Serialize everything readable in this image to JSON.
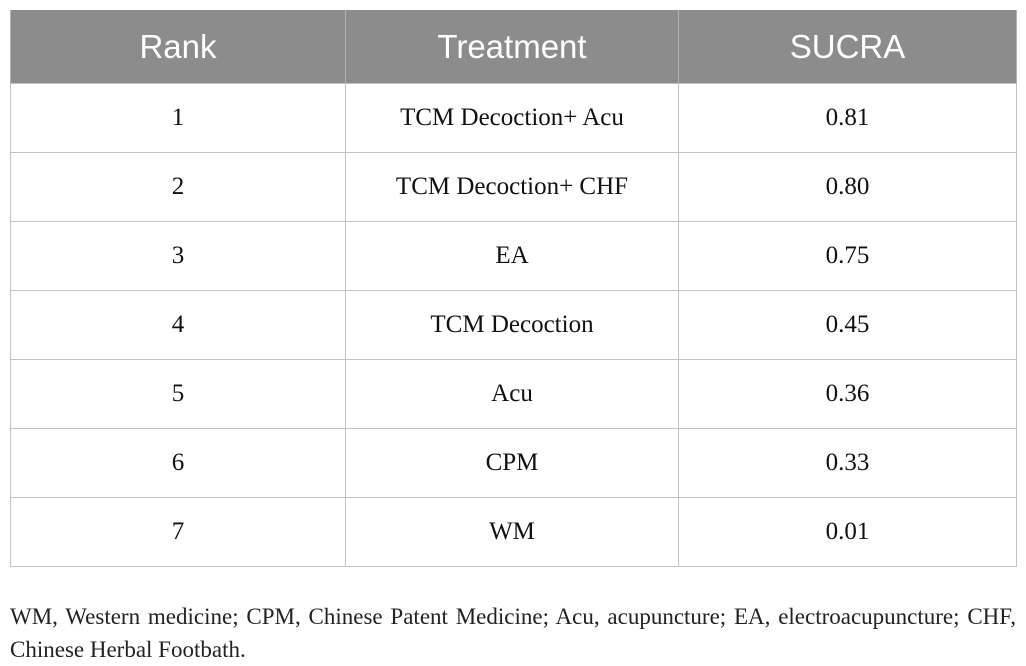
{
  "table": {
    "headers": [
      "Rank",
      "Treatment",
      "SUCRA"
    ],
    "rows": [
      {
        "rank": "1",
        "treatment": "TCM Decoction+ Acu",
        "sucra": "0.81"
      },
      {
        "rank": "2",
        "treatment": "TCM Decoction+ CHF",
        "sucra": "0.80"
      },
      {
        "rank": "3",
        "treatment": "EA",
        "sucra": "0.75"
      },
      {
        "rank": "4",
        "treatment": "TCM Decoction",
        "sucra": "0.45"
      },
      {
        "rank": "5",
        "treatment": "Acu",
        "sucra": "0.36"
      },
      {
        "rank": "6",
        "treatment": "CPM",
        "sucra": "0.33"
      },
      {
        "rank": "7",
        "treatment": "WM",
        "sucra": "0.01"
      }
    ]
  },
  "footnote": "WM, Western medicine; CPM, Chinese Patent Medicine; Acu, acupuncture; EA, electroacupuncture; CHF, Chinese Herbal Footbath.",
  "colors": {
    "header_background": "#8c8c8c",
    "header_text": "#ffffff",
    "grid_lines": "#c2c2c2"
  }
}
